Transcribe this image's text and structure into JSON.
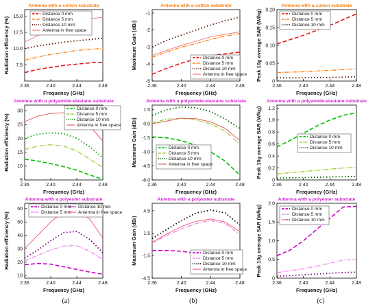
{
  "panel_labels": [
    "(a)",
    "(b)",
    "(c)"
  ],
  "chart_data": [
    {
      "type": "line",
      "title": "Antenna with a cotton substrate",
      "xlabel": "Frequency (GHz)",
      "ylabel": "Radiation efficiency (%)",
      "xlim": [
        2.36,
        2.48
      ],
      "ylim": [
        5,
        16
      ],
      "xticks": [
        2.36,
        2.4,
        2.44,
        2.48
      ],
      "xticklabels": [
        "2.36",
        "2.40",
        "2.44",
        "2.48"
      ],
      "yticks": [
        7.5,
        10.0,
        12.5,
        15.0
      ],
      "yticklabels": [
        "7.5",
        "10.0",
        "12.5",
        "15.0"
      ],
      "legend": "top-left",
      "x": [
        2.36,
        2.38,
        2.4,
        2.42,
        2.44,
        2.46,
        2.48
      ],
      "series": [
        {
          "name": "Distance 0 mm",
          "values": [
            6.3,
            6.8,
            7.1,
            7.4,
            7.6,
            7.8,
            7.9
          ]
        },
        {
          "name": "Distance 5 mm",
          "values": [
            8.2,
            8.7,
            9.1,
            9.4,
            9.7,
            9.9,
            10.0
          ]
        },
        {
          "name": "Distance 10 mm",
          "values": [
            10.0,
            10.4,
            10.7,
            11.0,
            11.2,
            11.4,
            11.6
          ]
        },
        {
          "name": "Antenna in free space",
          "values": [
            11.0,
            12.0,
            12.9,
            13.6,
            14.2,
            14.6,
            14.8
          ]
        }
      ]
    },
    {
      "type": "line",
      "title": "Antenna with a cotton substrate",
      "xlabel": "Frequency (GHz)",
      "ylabel": "Maximum Gain (dBi)",
      "xlim": [
        2.36,
        2.48
      ],
      "ylim": [
        -5,
        -0.8
      ],
      "xticks": [
        2.36,
        2.4,
        2.44,
        2.48
      ],
      "xticklabels": [
        "2.36",
        "2.40",
        "2.44",
        "2.48"
      ],
      "yticks": [
        -5,
        -4,
        -3,
        -2,
        -1
      ],
      "yticklabels": [
        "-5",
        "-4",
        "-3",
        "-2",
        "-1"
      ],
      "legend": "bottom-right",
      "x": [
        2.36,
        2.38,
        2.4,
        2.42,
        2.44,
        2.46,
        2.48
      ],
      "series": [
        {
          "name": "Distance 0 mm",
          "values": [
            -4.6,
            -4.25,
            -3.95,
            -3.7,
            -3.5,
            -3.4,
            -3.3
          ]
        },
        {
          "name": "Distance 5 mm",
          "values": [
            -3.6,
            -3.3,
            -3.0,
            -2.8,
            -2.55,
            -2.35,
            -2.2
          ]
        },
        {
          "name": "Distance 10 mm",
          "values": [
            -3.0,
            -2.6,
            -2.3,
            -2.0,
            -1.7,
            -1.45,
            -1.25
          ]
        },
        {
          "name": "Antenna in free space",
          "values": [
            -3.5,
            -3.2,
            -2.9,
            -2.65,
            -2.4,
            -2.25,
            -2.1
          ]
        }
      ]
    },
    {
      "type": "line",
      "title": "Antenna with a cotton substrate",
      "xlabel": "Frequency (GHz)",
      "ylabel": "Peak 10g average SAR (W/kg)",
      "xlim": [
        2.36,
        2.48
      ],
      "ylim": [
        0,
        0.2
      ],
      "xticks": [
        2.36,
        2.4,
        2.44,
        2.48
      ],
      "xticklabels": [
        "2.36",
        "2.40",
        "2.44",
        "2.48"
      ],
      "yticks": [
        0,
        0.05,
        0.1,
        0.15,
        0.2
      ],
      "yticklabels": [
        "0",
        "0.05",
        "0.10",
        "0.15",
        "0.20"
      ],
      "legend": "top-left",
      "x": [
        2.36,
        2.38,
        2.4,
        2.42,
        2.44,
        2.46,
        2.48
      ],
      "series": [
        {
          "name": "Distance 0 mm",
          "values": [
            0.104,
            0.116,
            0.128,
            0.142,
            0.156,
            0.172,
            0.188
          ]
        },
        {
          "name": "Distance 5 mm",
          "values": [
            0.024,
            0.025,
            0.026,
            0.028,
            0.03,
            0.032,
            0.035
          ]
        },
        {
          "name": "Distance 10 mm",
          "values": [
            0.009,
            0.009,
            0.009,
            0.01,
            0.01,
            0.011,
            0.012
          ]
        }
      ]
    },
    {
      "type": "line",
      "title": "Antenna with a polyamide-elastane substrate",
      "xlabel": "Frequency (GHz)",
      "ylabel": "Radiation efficiency (%)",
      "xlim": [
        2.36,
        2.48
      ],
      "ylim": [
        5,
        32
      ],
      "xticks": [
        2.36,
        2.4,
        2.44,
        2.48
      ],
      "xticklabels": [
        "2.36",
        "2.40",
        "2.44",
        "2.48"
      ],
      "yticks": [
        5,
        10,
        15,
        20,
        25,
        30
      ],
      "yticklabels": [
        "5",
        "10",
        "15",
        "20",
        "25",
        "30"
      ],
      "legend": "top-right",
      "x": [
        2.36,
        2.38,
        2.4,
        2.42,
        2.44,
        2.46,
        2.48
      ],
      "series": [
        {
          "name": "Distance 0 mm",
          "values": [
            12.5,
            11.8,
            10.9,
            9.8,
            8.5,
            6.8,
            5.2
          ]
        },
        {
          "name": "Distance 5 mm",
          "values": [
            16.0,
            17.2,
            17.7,
            17.2,
            15.5,
            12.5,
            9.5
          ]
        },
        {
          "name": "Distance 10 mm",
          "values": [
            20.0,
            21.5,
            22.0,
            21.7,
            20.0,
            17.0,
            13.0
          ]
        },
        {
          "name": "Antenna in free space",
          "values": [
            26.0,
            28.0,
            29.0,
            29.2,
            28.0,
            24.5,
            19.0
          ]
        }
      ]
    },
    {
      "type": "line",
      "title": "Antenna with a polyamide-elastane substrate",
      "xlabel": "Frequency (GHz)",
      "ylabel": "Maximum Gain (dBi)",
      "xlim": [
        2.36,
        2.48
      ],
      "ylim": [
        -6,
        2
      ],
      "xticks": [
        2.36,
        2.4,
        2.44,
        2.48
      ],
      "xticklabels": [
        "2.36",
        "2.40",
        "2.44",
        "2.48"
      ],
      "yticks": [
        -6,
        -4.5,
        -3,
        -1.5,
        0,
        1.5
      ],
      "yticklabels": [
        "-6.0",
        "-4.5",
        "-3.0",
        "-1.5",
        "0.0",
        "1.5"
      ],
      "legend": "bottom-left",
      "x": [
        2.36,
        2.38,
        2.4,
        2.42,
        2.44,
        2.46,
        2.48
      ],
      "series": [
        {
          "name": "Distance 0 mm",
          "values": [
            -1.4,
            -1.5,
            -1.8,
            -2.3,
            -3.0,
            -4.0,
            -5.5
          ]
        },
        {
          "name": "Distance 5 mm",
          "values": [
            0.1,
            0.5,
            0.6,
            0.4,
            0.0,
            -0.8,
            -2.2
          ]
        },
        {
          "name": "Distance 10 mm",
          "values": [
            0.9,
            1.5,
            1.8,
            1.7,
            1.3,
            0.5,
            -0.5
          ]
        },
        {
          "name": "Antenna in free space",
          "values": [
            0.0,
            0.3,
            0.6,
            0.55,
            0.2,
            -0.5,
            -1.8
          ]
        }
      ]
    },
    {
      "type": "line",
      "title": "Antenna with a polyamide-elastane substrate",
      "xlabel": "Frequency (GHz)",
      "ylabel": "Peak 10g average SAR (W/kg)",
      "xlim": [
        2.36,
        2.48
      ],
      "ylim": [
        0,
        1.25
      ],
      "xticks": [
        2.36,
        2.4,
        2.44,
        2.48
      ],
      "xticklabels": [
        "2.36",
        "2.40",
        "2.44",
        "2.48"
      ],
      "yticks": [
        0,
        0.2,
        0.4,
        0.6,
        0.8,
        1.0,
        1.2
      ],
      "yticklabels": [
        "0",
        "0.2",
        "0.4",
        "0.6",
        "0.8",
        "1.0",
        "1.2"
      ],
      "legend": "right",
      "x": [
        2.36,
        2.38,
        2.4,
        2.42,
        2.44,
        2.46,
        2.48
      ],
      "series": [
        {
          "name": "Distance 0 mm",
          "values": [
            0.55,
            0.66,
            0.78,
            0.9,
            1.0,
            1.08,
            1.12
          ]
        },
        {
          "name": "Distance 5 mm",
          "values": [
            0.1,
            0.12,
            0.14,
            0.16,
            0.18,
            0.2,
            0.21
          ]
        },
        {
          "name": "Distance 10 mm",
          "values": [
            0.03,
            0.035,
            0.04,
            0.045,
            0.05,
            0.055,
            0.06
          ]
        }
      ]
    },
    {
      "type": "line",
      "title": "Antenna with a polyester substrate",
      "xlabel": "Frequency (GHz)",
      "ylabel": "Radiation efficiency (%)",
      "xlim": [
        2.36,
        2.48
      ],
      "ylim": [
        8,
        64
      ],
      "xticks": [
        2.36,
        2.4,
        2.44,
        2.48
      ],
      "xticklabels": [
        "2.36",
        "2.40",
        "2.44",
        "2.48"
      ],
      "yticks": [
        10,
        20,
        30,
        40,
        50,
        60
      ],
      "yticklabels": [
        "10",
        "20",
        "30",
        "40",
        "50",
        "60"
      ],
      "legend": "top",
      "x": [
        2.36,
        2.38,
        2.4,
        2.42,
        2.44,
        2.46,
        2.48
      ],
      "series": [
        {
          "name": "Distance 0 mm",
          "values": [
            18.0,
            19.0,
            18.5,
            16.5,
            14.5,
            12.5,
            11.0
          ]
        },
        {
          "name": "Distance 5 mm",
          "values": [
            21.0,
            25.0,
            29.0,
            32.0,
            32.5,
            28.0,
            22.0
          ]
        },
        {
          "name": "Distance 10 mm",
          "values": [
            23.0,
            29.0,
            36.0,
            42.0,
            43.0,
            37.0,
            27.0
          ]
        },
        {
          "name": "Antenna in free space",
          "values": [
            30.0,
            40.0,
            50.0,
            58.0,
            60.0,
            52.0,
            38.0
          ]
        }
      ]
    },
    {
      "type": "line",
      "title": "Antenna with a polyester substrate",
      "xlabel": "Frequency (GHz)",
      "ylabel": "Maximum Gain (dBi)",
      "xlim": [
        2.36,
        2.48
      ],
      "ylim": [
        -4.5,
        5.5
      ],
      "xticks": [
        2.36,
        2.4,
        2.44,
        2.48
      ],
      "xticklabels": [
        "2.36",
        "2.40",
        "2.44",
        "2.48"
      ],
      "yticks": [
        -4.5,
        -1.5,
        1.5,
        4.5
      ],
      "yticklabels": [
        "-4.5",
        "-1.5",
        "1.5",
        "4.5"
      ],
      "legend": "bottom-right",
      "x": [
        2.36,
        2.38,
        2.4,
        2.42,
        2.44,
        2.46,
        2.48
      ],
      "series": [
        {
          "name": "Distance 0 mm",
          "values": [
            -0.8,
            -0.8,
            -0.9,
            -1.2,
            -1.9,
            -2.9,
            -4.0
          ]
        },
        {
          "name": "Distance 5 mm",
          "values": [
            0.2,
            1.2,
            2.1,
            2.8,
            3.2,
            2.8,
            1.3
          ]
        },
        {
          "name": "Distance 10 mm",
          "values": [
            0.8,
            2.0,
            3.2,
            4.2,
            4.6,
            4.2,
            2.6
          ]
        },
        {
          "name": "Antenna in free space",
          "values": [
            0.3,
            1.4,
            2.4,
            3.1,
            3.4,
            3.0,
            1.7
          ]
        }
      ]
    },
    {
      "type": "line",
      "title": "Antenna with a polyester substrate",
      "xlabel": "Frequency (GHz)",
      "ylabel": "Peak 10g average SAR (W/kg)",
      "xlim": [
        2.36,
        2.48
      ],
      "ylim": [
        0,
        2.0
      ],
      "xticks": [
        2.36,
        2.4,
        2.44,
        2.48
      ],
      "xticklabels": [
        "2.36",
        "2.40",
        "2.44",
        "2.48"
      ],
      "yticks": [
        0,
        0.5,
        1.0,
        1.5,
        2.0
      ],
      "yticklabels": [
        "0",
        "0.5",
        "1.0",
        "1.5",
        "2.0"
      ],
      "legend": "top-left",
      "x": [
        2.36,
        2.38,
        2.4,
        2.42,
        2.44,
        2.46,
        2.48
      ],
      "series": [
        {
          "name": "Distance 0 mm",
          "values": [
            0.6,
            0.75,
            1.0,
            1.3,
            1.6,
            1.9,
            1.92
          ]
        },
        {
          "name": "Distance 5 mm",
          "values": [
            0.15,
            0.2,
            0.25,
            0.32,
            0.4,
            0.48,
            0.5
          ]
        },
        {
          "name": "Distance 10 mm",
          "values": [
            0.05,
            0.07,
            0.09,
            0.11,
            0.13,
            0.15,
            0.16
          ]
        }
      ]
    }
  ],
  "styles": {
    "title_colors": [
      "#ff7f0e",
      "#ff7f0e",
      "#ff7f0e",
      "#d41cd4",
      "#d41cd4",
      "#d41cd4",
      "#d41cd4",
      "#d41cd4",
      "#d41cd4"
    ],
    "series_colors": [
      [
        "#e41a1c",
        "#ff7f0e",
        "#5a1a00",
        "#f08080"
      ],
      [
        "#e41a1c",
        "#ff7f0e",
        "#5a1a00",
        "#f08080"
      ],
      [
        "#e41a1c",
        "#ff7f0e",
        "#5a1a00"
      ],
      [
        "#00c000",
        "#9acd32",
        "#00a000",
        "#e06060"
      ],
      [
        "#00c000",
        "#9acd32",
        "#006400",
        "#e06060"
      ],
      [
        "#00c000",
        "#9acd32",
        "#006400"
      ],
      [
        "#cc00cc",
        "#ee82ee",
        "#800080",
        "#f06070"
      ],
      [
        "#cc00cc",
        "#ee82ee",
        "#000000",
        "#f06070"
      ],
      [
        "#cc00cc",
        "#ee82ee",
        "#800080"
      ]
    ]
  }
}
